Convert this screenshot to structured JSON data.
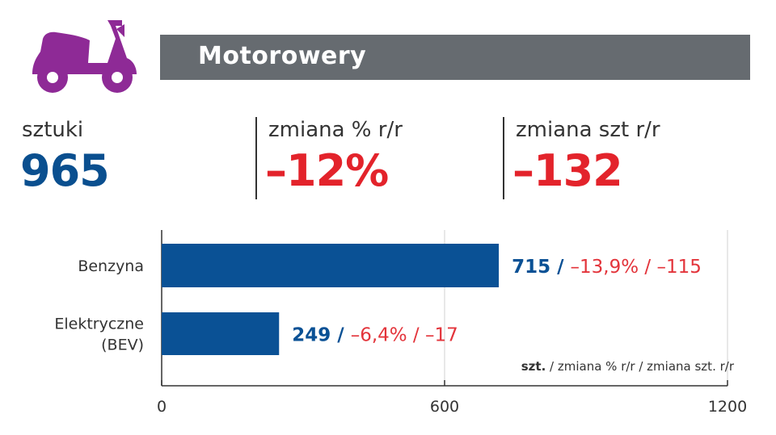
{
  "header": {
    "title": "Motorowery",
    "icon": "scooter-icon",
    "icon_color": "#8e2a96"
  },
  "kpis": [
    {
      "label": "sztuki",
      "value": "965",
      "color": "#0a4f8f"
    },
    {
      "label": "zmiana % r/r",
      "value": "–12%",
      "color": "#e3232b"
    },
    {
      "label": "zmiana szt r/r",
      "value": "–132",
      "color": "#e3232b"
    }
  ],
  "chart_data": {
    "type": "bar",
    "orientation": "horizontal",
    "categories": [
      "Benzyna",
      "Elektryczne (BEV)"
    ],
    "category_lines": [
      [
        "Benzyna"
      ],
      [
        "Elektryczne",
        "(BEV)"
      ]
    ],
    "values": [
      715,
      249
    ],
    "labels": [
      {
        "units": "715",
        "pct": "–13,9%",
        "diff": "–115"
      },
      {
        "units": "249",
        "pct": "–6,4%",
        "diff": "–17"
      }
    ],
    "xlim": [
      0,
      1200
    ],
    "ticks": [
      0,
      600,
      1200
    ],
    "tick_labels": [
      "0",
      "600",
      "1200"
    ],
    "legend_note": {
      "bold": "szt.",
      "rest": " / zmiana % r/r / zmiana szt. r/r"
    },
    "bar_color": "#0a5195",
    "neg_color": "#e3343b",
    "grid": true
  }
}
